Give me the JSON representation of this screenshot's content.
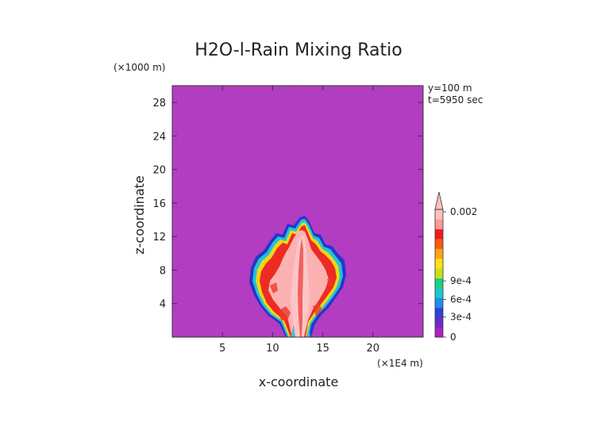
{
  "chart_data": {
    "type": "heatmap",
    "title": "H2O-l-Rain Mixing Ratio",
    "xlabel": "x-coordinate",
    "ylabel": "z-coordinate",
    "x_unit": "(×1E4 m)",
    "y_unit": "(×1000 m)",
    "xlim": [
      0,
      25
    ],
    "ylim": [
      0,
      30
    ],
    "x_ticks": [
      5,
      10,
      15,
      20
    ],
    "y_ticks": [
      4,
      8,
      12,
      16,
      20,
      24,
      28
    ],
    "annotations": [
      "y=100 m",
      "t=5950 sec"
    ],
    "colorbar": {
      "range": [
        0,
        0.002
      ],
      "tick_labels": [
        "0",
        "3e-4",
        "6e-4",
        "9e-4",
        "0.002"
      ],
      "tick_values": [
        0,
        0.0003,
        0.0006,
        0.0009,
        0.002
      ],
      "colors": [
        "#b020c0",
        "#6a2cc8",
        "#3040d8",
        "#1e8cf0",
        "#18c8d0",
        "#20d080",
        "#c8e020",
        "#ffe018",
        "#ffa418",
        "#ff5a10",
        "#f01c1c",
        "#ff9898",
        "#ffc0c0"
      ]
    },
    "background_color": "#b43ec4",
    "cloud_core_color": "#ffb4b4",
    "cloud_edge_color": "#f03030"
  }
}
